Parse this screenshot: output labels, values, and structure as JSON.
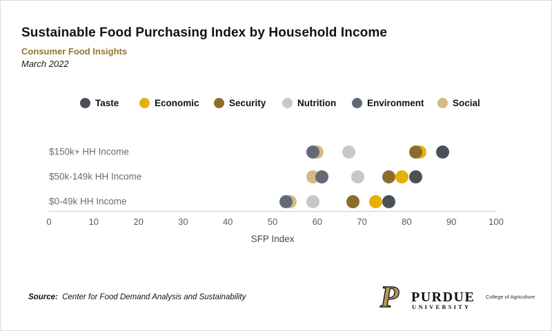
{
  "header": {
    "title": "Sustainable Food Purchasing Index by Household Income",
    "subtitle": "Consumer Food Insights",
    "date": "March 2022"
  },
  "chart_data": {
    "type": "scatter",
    "title": "Sustainable Food Purchasing Index by Household Income",
    "xlabel": "SFP Index",
    "xlim": [
      0,
      100
    ],
    "xticks": [
      0,
      10,
      20,
      30,
      40,
      50,
      60,
      70,
      80,
      90,
      100
    ],
    "grid": false,
    "legend_position": "top",
    "categories": [
      "$150k+ HH Income",
      "$50k-149k HH Income",
      "$0-49k HH Income"
    ],
    "series": [
      {
        "name": "Taste",
        "color": "#4A4F58",
        "values": [
          88,
          82,
          76
        ]
      },
      {
        "name": "Economic",
        "color": "#E7AF0C",
        "values": [
          83,
          79,
          73
        ]
      },
      {
        "name": "Security",
        "color": "#8C6D2E",
        "values": [
          82,
          76,
          68
        ]
      },
      {
        "name": "Nutrition",
        "color": "#C9C7C6",
        "values": [
          67,
          69,
          59
        ]
      },
      {
        "name": "Environment",
        "color": "#636975",
        "values": [
          59,
          61,
          53
        ]
      },
      {
        "name": "Social",
        "color": "#D5BA88",
        "values": [
          60,
          59,
          54
        ]
      }
    ]
  },
  "footer": {
    "source_label": "Source:",
    "source_text": "Center for Food Demand Analysis and Sustainability",
    "logo": {
      "p": "P",
      "name": "PURDUE",
      "sub": "UNIVERSITY",
      "college": "College of Agriculture"
    }
  }
}
